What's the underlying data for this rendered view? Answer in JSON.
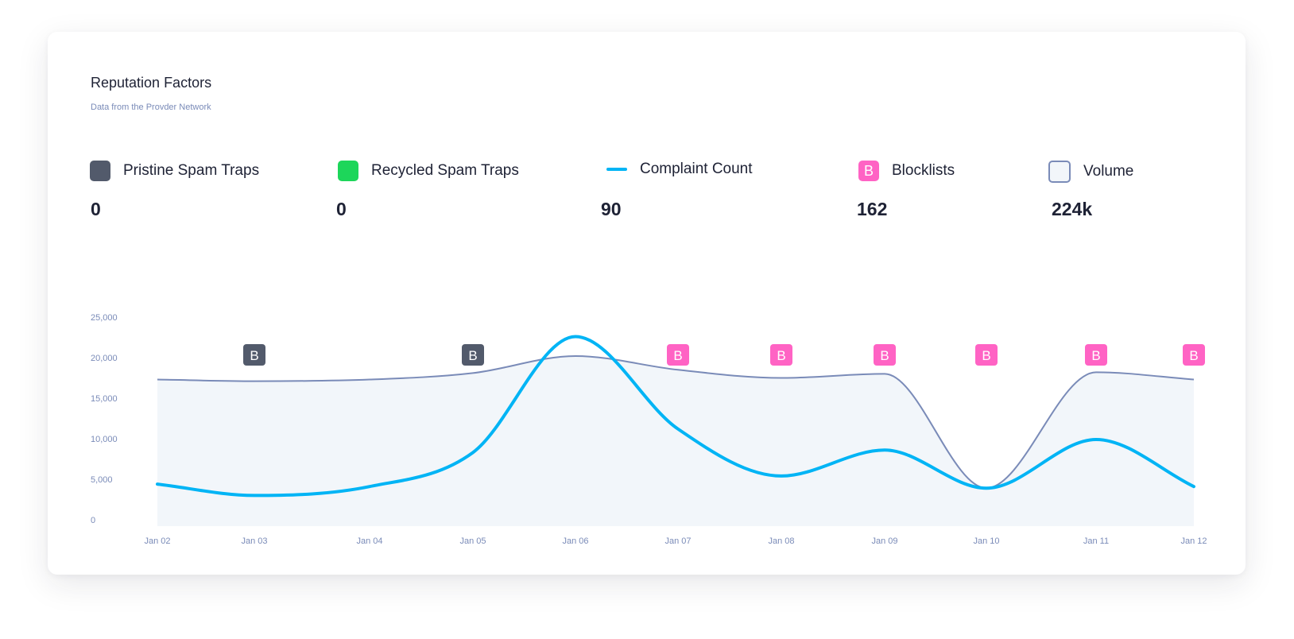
{
  "header": {
    "title": "Reputation Factors",
    "subtitle": "Data from the Provder Network"
  },
  "colors": {
    "pristine": "#525a6b",
    "recycled": "#1dd65a",
    "complaint": "#00b4f5",
    "blocklist": "#ff63c4",
    "volume_line": "#7a8bb8",
    "volume_fill": "#f2f6fa"
  },
  "legend": [
    {
      "label": "Pristine Spam Traps",
      "value": "0",
      "icon": "square-swatch"
    },
    {
      "label": "Recycled Spam Traps",
      "value": "0",
      "icon": "square-swatch"
    },
    {
      "label": "Complaint Count",
      "value": "90",
      "icon": "line-swatch"
    },
    {
      "label": "Blocklists",
      "value": "162",
      "icon": "b-badge",
      "badge": "B"
    },
    {
      "label": "Volume",
      "value": "224k",
      "icon": "square-swatch"
    }
  ],
  "chart_data": {
    "type": "line",
    "categories": [
      "Jan 02",
      "Jan 03",
      "Jan 04",
      "Jan 05",
      "Jan 06",
      "Jan 07",
      "Jan 08",
      "Jan 09",
      "Jan 10",
      "Jan 11",
      "Jan 12"
    ],
    "yticks": [
      "0",
      "5,000",
      "10,000",
      "15,000",
      "20,000",
      "25,000"
    ],
    "ylim": [
      0,
      25000
    ],
    "series": [
      {
        "name": "Volume",
        "type": "area",
        "values": [
          17300,
          17100,
          17300,
          18100,
          20200,
          18500,
          17500,
          18000,
          3900,
          18200,
          17300
        ]
      },
      {
        "name": "Complaint Count",
        "type": "line",
        "values": [
          4400,
          3000,
          4100,
          8300,
          22600,
          11200,
          5400,
          8600,
          3900,
          9900,
          4100
        ]
      }
    ],
    "markers": [
      {
        "category": "Jan 03",
        "label": "B",
        "kind": "pristine"
      },
      {
        "category": "Jan 05",
        "label": "B",
        "kind": "pristine"
      },
      {
        "category": "Jan 07",
        "label": "B",
        "kind": "blocklist"
      },
      {
        "category": "Jan 08",
        "label": "B",
        "kind": "blocklist"
      },
      {
        "category": "Jan 09",
        "label": "B",
        "kind": "blocklist"
      },
      {
        "category": "Jan 10",
        "label": "B",
        "kind": "blocklist"
      },
      {
        "category": "Jan 11",
        "label": "B",
        "kind": "blocklist"
      },
      {
        "category": "Jan 12",
        "label": "B",
        "kind": "blocklist"
      }
    ],
    "title": "Reputation Factors",
    "xlabel": "",
    "ylabel": "",
    "grid": false
  }
}
